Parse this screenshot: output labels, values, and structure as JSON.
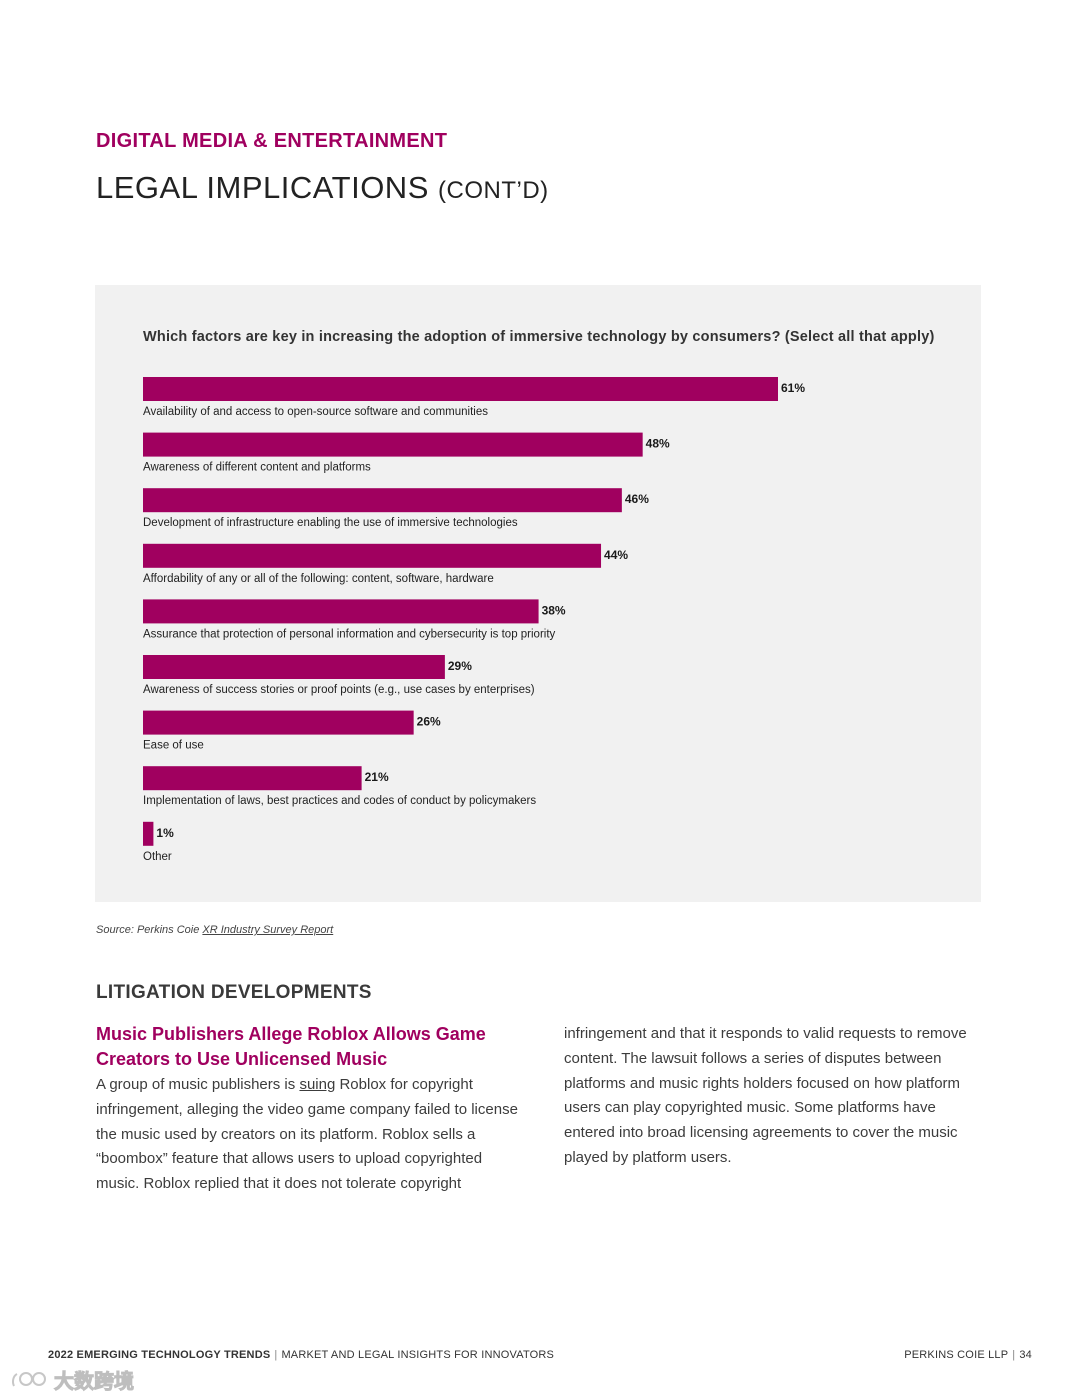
{
  "header": {
    "section_label": "DIGITAL MEDIA & ENTERTAINMENT",
    "title_main": "LEGAL IMPLICATIONS",
    "title_suffix": "(CONT’D)"
  },
  "colors": {
    "accent": "#a0005f",
    "panel": "#f1f1f1"
  },
  "chart_data": {
    "type": "bar",
    "orientation": "horizontal",
    "title": "Which factors are key in increasing the adoption of immersive technology by consumers? (Select all that apply)",
    "categories": [
      "Availability of and access to open-source software and communities",
      "Awareness of different content and platforms",
      "Development of infrastructure enabling the use of immersive technologies",
      "Affordability of any or all of the following: content, software, hardware",
      "Assurance that protection of personal information and cybersecurity is top priority",
      "Awareness of success stories or proof points (e.g., use cases by enterprises)",
      "Ease of use",
      "Implementation of laws, best practices and codes of conduct by policymakers",
      "Other"
    ],
    "values": [
      61,
      48,
      46,
      44,
      38,
      29,
      26,
      21,
      1
    ],
    "value_labels": [
      "61%",
      "48%",
      "46%",
      "44%",
      "38%",
      "29%",
      "26%",
      "21%",
      "1%"
    ],
    "unit": "%",
    "xlim": [
      0,
      100
    ],
    "xlabel": "",
    "ylabel": "",
    "grid": false,
    "bar_color": "#a0005f"
  },
  "source": {
    "prefix": "Source: Perkins Coie ",
    "link_text": "XR Industry Survey Report"
  },
  "litigation": {
    "heading": "LITIGATION DEVELOPMENTS",
    "article_title": "Music Publishers Allege Roblox Allows Game Creators to Use Unlicensed Music",
    "left_before": "A group of music publishers is ",
    "left_link": "suing",
    "left_after": " Roblox for copyright infringement, alleging the video game company failed to license the music used by creators on its platform. Roblox sells a “boombox” feature that allows users to upload copyrighted music. Roblox replied that it does not tolerate copyright",
    "right_text": "infringement and that it responds to valid requests to remove content. The lawsuit follows a series of disputes between platforms and music rights holders focused on how platform users can play copyrighted music. Some platforms have entered into broad licensing agreements to cover the music played by platform users."
  },
  "footer": {
    "report_title": "2022 EMERGING TECHNOLOGY TRENDS",
    "separator": "|",
    "subtitle": "MARKET AND LEGAL INSIGHTS FOR INNOVATORS",
    "firm": "PERKINS COIE LLP",
    "page_number": "34"
  },
  "watermark": {
    "text": "大数跨境"
  }
}
